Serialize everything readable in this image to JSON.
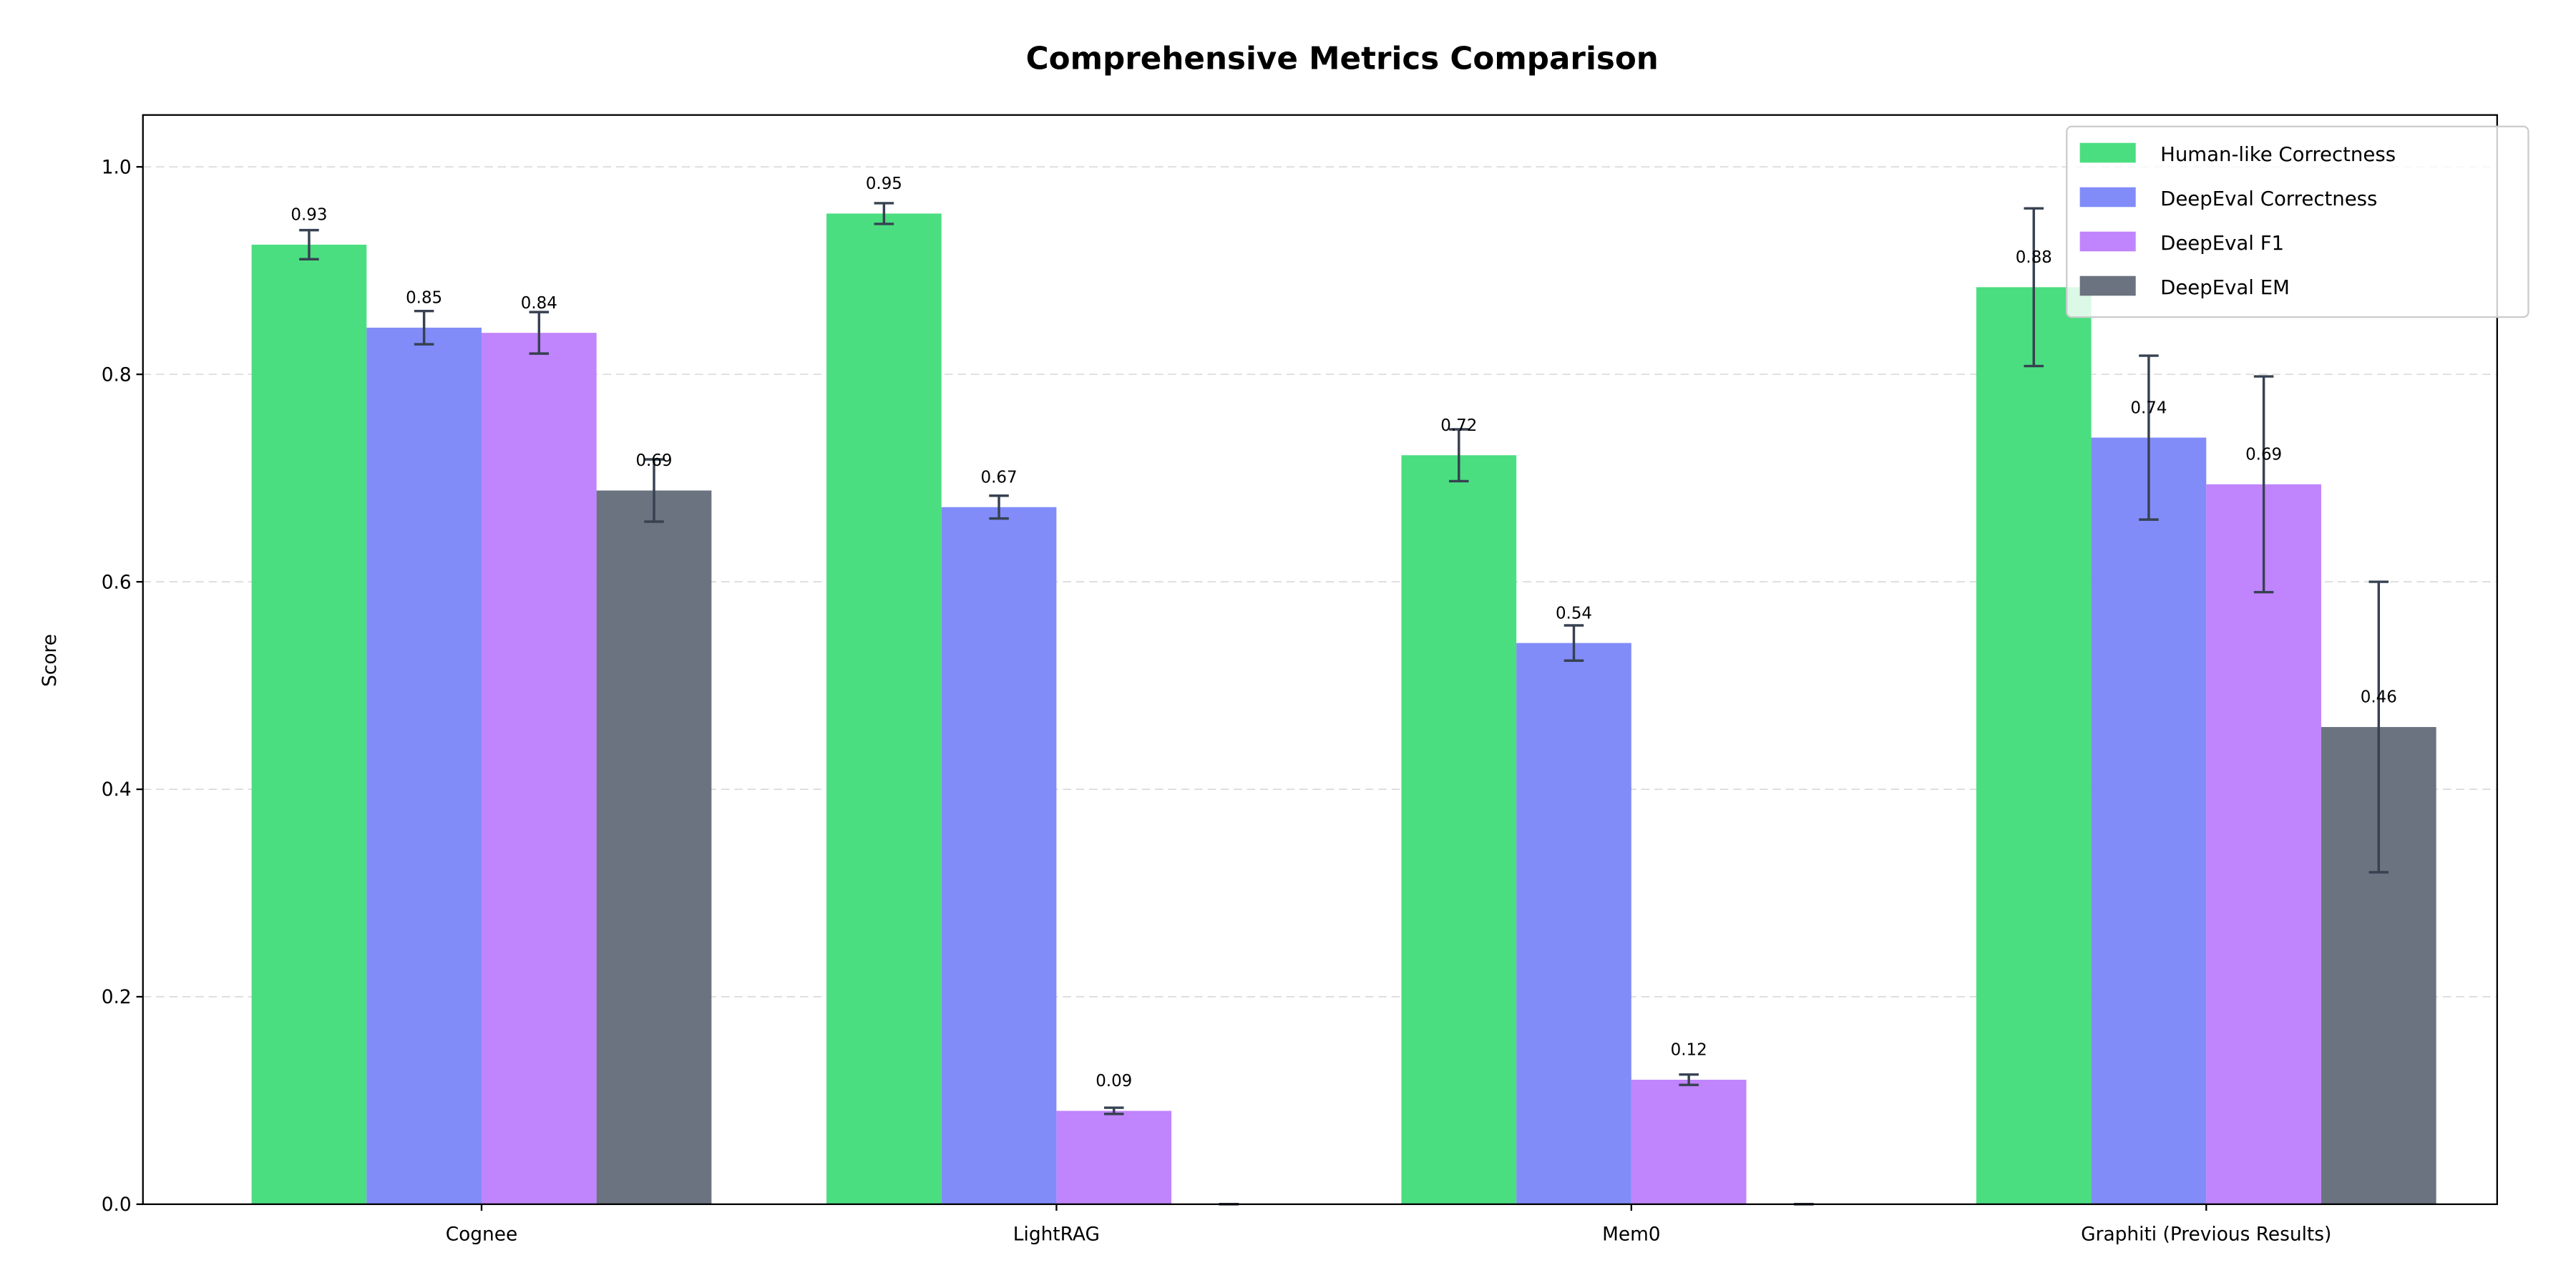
{
  "chart_data": {
    "type": "bar",
    "title": "Comprehensive Metrics Comparison",
    "xlabel": "",
    "ylabel": "Score",
    "ylim": [
      0,
      1.05
    ],
    "yticks": [
      "0.0",
      "0.2",
      "0.4",
      "0.6",
      "0.8",
      "1.0"
    ],
    "grid": "y dashed",
    "legend_position": "top-right",
    "categories": [
      "Cognee",
      "LightRAG",
      "Mem0",
      "Graphiti (Previous Results)"
    ],
    "series": [
      {
        "name": "Human-like Correctness",
        "color": "#4ade80",
        "values": [
          0.925,
          0.955,
          0.722,
          0.884
        ],
        "errors": [
          0.014,
          0.01,
          0.025,
          0.076
        ],
        "labels": [
          "0.93",
          "0.95",
          "0.72",
          "0.88"
        ]
      },
      {
        "name": "DeepEval Correctness",
        "color": "#818cf8",
        "values": [
          0.845,
          0.672,
          0.541,
          0.739
        ],
        "errors": [
          0.016,
          0.011,
          0.017,
          0.079
        ],
        "labels": [
          "0.85",
          "0.67",
          "0.54",
          "0.74"
        ]
      },
      {
        "name": "DeepEval F1",
        "color": "#c084fc",
        "values": [
          0.84,
          0.09,
          0.12,
          0.694
        ],
        "errors": [
          0.02,
          0.003,
          0.005,
          0.104
        ],
        "labels": [
          "0.84",
          "0.09",
          "0.12",
          "0.69"
        ]
      },
      {
        "name": "DeepEval EM",
        "color": "#6b7280",
        "values": [
          0.688,
          0.0,
          0.0,
          0.46
        ],
        "errors": [
          0.03,
          0.0,
          0.0,
          0.14
        ],
        "labels": [
          "0.69",
          "",
          "",
          "0.46"
        ]
      }
    ],
    "error_bar_color": "#374151"
  }
}
